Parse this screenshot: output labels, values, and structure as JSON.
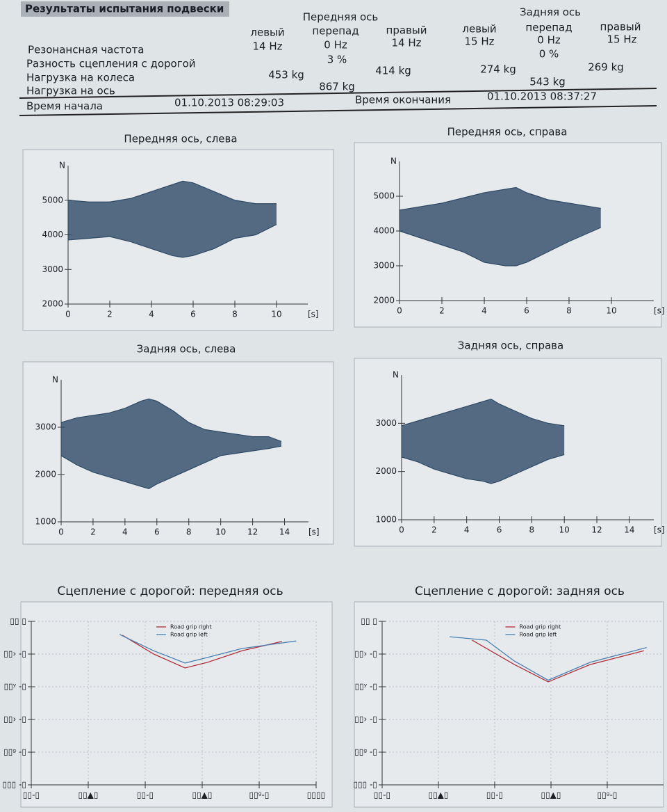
{
  "report": {
    "title": "Результаты испытания подвески",
    "groups": [
      "Передняя ось",
      "Задняя ось"
    ],
    "columns": [
      "левый",
      "перепад",
      "правый",
      "левый",
      "перепад",
      "правый"
    ],
    "rows": [
      {
        "label": "Резонансная частота",
        "cells": [
          "14 Hz",
          "0 Hz",
          "14 Hz",
          "15 Hz",
          "0 Hz",
          "15 Hz"
        ]
      },
      {
        "label": "Разность сцепления с дорогой",
        "cells": [
          "3 %",
          "0 %"
        ]
      },
      {
        "label": "Нагрузка на колеса",
        "cells": [
          "453 kg",
          "414 kg",
          "274 kg",
          "269 kg"
        ]
      },
      {
        "label": "Нагрузка на ось",
        "cells": [
          "867 kg",
          "543 kg"
        ]
      }
    ],
    "start_label": "Время начала",
    "start": "01.10.2013 08:29:03",
    "end_label": "Время окончания",
    "end": "01.10.2013 08:37:27"
  },
  "chart_data": [
    {
      "type": "area",
      "title": "Передняя ось, слева",
      "x_label": "[s]",
      "y_label": "N",
      "color": "#2f4a66",
      "xlim": [
        0,
        11.5
      ],
      "ylim": [
        2000,
        6000
      ],
      "xticks": [
        0,
        2,
        4,
        6,
        8,
        10
      ],
      "yticks": [
        2000,
        3000,
        4000,
        5000
      ],
      "x": [
        0,
        1,
        2,
        3,
        4,
        5,
        5.5,
        6,
        7,
        8,
        9,
        10
      ],
      "series": [
        {
          "values": [
            5000,
            4950,
            4950,
            5050,
            5250,
            5450,
            5550,
            5500,
            5250,
            5000,
            4900,
            4900
          ]
        },
        {
          "values": [
            3850,
            3900,
            3950,
            3800,
            3600,
            3400,
            3350,
            3400,
            3600,
            3900,
            4000,
            4300
          ]
        }
      ]
    },
    {
      "type": "area",
      "title": "Передняя ось, справа",
      "x_label": "[s]",
      "y_label": "N",
      "color": "#2f4a66",
      "xlim": [
        0,
        12
      ],
      "ylim": [
        2000,
        6000
      ],
      "xticks": [
        0,
        2,
        4,
        6,
        8,
        10
      ],
      "yticks": [
        2000,
        3000,
        4000,
        5000
      ],
      "x": [
        0,
        1,
        2,
        3,
        4,
        5,
        5.5,
        6,
        7,
        8,
        9.5
      ],
      "series": [
        {
          "values": [
            4600,
            4700,
            4800,
            4950,
            5100,
            5200,
            5250,
            5100,
            4900,
            4800,
            4650
          ]
        },
        {
          "values": [
            4000,
            3800,
            3600,
            3400,
            3100,
            3000,
            3000,
            3100,
            3400,
            3700,
            4100
          ]
        }
      ]
    },
    {
      "type": "area",
      "title": "Задняя ось, слева",
      "x_label": "[s]",
      "y_label": "N",
      "color": "#2f4a66",
      "xlim": [
        0,
        15.5
      ],
      "ylim": [
        1000,
        4000
      ],
      "xticks": [
        0,
        2,
        4,
        6,
        8,
        10,
        12,
        14
      ],
      "yticks": [
        1000,
        2000,
        3000
      ],
      "x": [
        0,
        1,
        2,
        3,
        4,
        5,
        5.5,
        6,
        7,
        8,
        9,
        10,
        11,
        12,
        13,
        13.8
      ],
      "series": [
        {
          "values": [
            3100,
            3200,
            3250,
            3300,
            3400,
            3550,
            3600,
            3550,
            3350,
            3100,
            2950,
            2900,
            2850,
            2800,
            2800,
            2700
          ]
        },
        {
          "values": [
            2400,
            2200,
            2050,
            1950,
            1850,
            1750,
            1700,
            1800,
            1950,
            2100,
            2250,
            2400,
            2450,
            2500,
            2550,
            2600
          ]
        }
      ]
    },
    {
      "type": "area",
      "title": "Задняя ось, справа",
      "x_label": "[s]",
      "y_label": "N",
      "color": "#2f4a66",
      "xlim": [
        0,
        15.5
      ],
      "ylim": [
        1000,
        4000
      ],
      "xticks": [
        0,
        2,
        4,
        6,
        8,
        10,
        12,
        14
      ],
      "yticks": [
        1000,
        2000,
        3000
      ],
      "x": [
        0,
        1,
        2,
        3,
        4,
        5,
        5.5,
        6,
        7,
        8,
        9,
        10
      ],
      "series": [
        {
          "values": [
            2950,
            3050,
            3150,
            3250,
            3350,
            3450,
            3500,
            3400,
            3250,
            3100,
            3000,
            2950
          ]
        },
        {
          "values": [
            2300,
            2200,
            2050,
            1950,
            1850,
            1800,
            1750,
            1800,
            1950,
            2100,
            2250,
            2350
          ]
        }
      ]
    },
    {
      "type": "line",
      "title": "Сцепление с дорогой: передняя ось",
      "grid": true,
      "legend": "top",
      "xlim": [
        0,
        100
      ],
      "ylim": [
        0,
        100
      ],
      "xticks": [
        {
          "value": 0,
          "label": "▯▯-▯"
        },
        {
          "value": 20,
          "label": "▯▯▲▯"
        },
        {
          "value": 40,
          "label": "▯▯-▯"
        },
        {
          "value": 60,
          "label": "▯▯▲▯"
        },
        {
          "value": 80,
          "label": "▯▯ᵍ-▯"
        },
        {
          "value": 100,
          "label": "▯▯▯▯"
        }
      ],
      "yticks": [
        {
          "value": 100,
          "label": "▯▯ ▯"
        },
        {
          "value": 80,
          "label": "▯▯› -▯"
        },
        {
          "value": 60,
          "label": "▯▯ʸ -▯"
        },
        {
          "value": 40,
          "label": "▯▯› -▯"
        },
        {
          "value": 20,
          "label": "▯▯ᵍ -▯"
        },
        {
          "value": 0,
          "label": "▯▯▯ -▯"
        }
      ],
      "series": [
        {
          "name": "Road grip right",
          "color": "#b0303a",
          "x": [
            32,
            43,
            54,
            62,
            74,
            88
          ],
          "values": [
            91.5,
            80,
            71.5,
            75,
            82,
            87.7
          ]
        },
        {
          "name": "Road grip left",
          "color": "#4a7fb0",
          "x": [
            31,
            43,
            54,
            62,
            74,
            93
          ],
          "values": [
            92,
            82,
            74.5,
            78,
            83.4,
            88
          ]
        }
      ]
    },
    {
      "type": "line",
      "title": "Сцепление с дорогой: задняя ось",
      "grid": true,
      "legend": "top",
      "xlim": [
        0,
        100
      ],
      "ylim": [
        0,
        100
      ],
      "xticks": [
        {
          "value": 0,
          "label": "▯▯-▯"
        },
        {
          "value": 20,
          "label": "▯▯▲▯"
        },
        {
          "value": 40,
          "label": "▯▯-▯"
        },
        {
          "value": 60,
          "label": "▯▯▲▯"
        },
        {
          "value": 80,
          "label": "▯▯ᵍ-▯"
        }
      ],
      "yticks": [
        {
          "value": 100,
          "label": "▯▯ ▯"
        },
        {
          "value": 80,
          "label": "▯▯› -▯"
        },
        {
          "value": 60,
          "label": "▯▯ʸ -▯"
        },
        {
          "value": 40,
          "label": "▯▯› -▯"
        },
        {
          "value": 20,
          "label": "▯▯ᵍ -▯"
        },
        {
          "value": 0,
          "label": "▯▯▯ -▯"
        }
      ],
      "series": [
        {
          "name": "Road grip right",
          "color": "#b0303a",
          "x": [
            32,
            47,
            59,
            74,
            93
          ],
          "values": [
            88.5,
            73.6,
            63,
            73.6,
            82
          ]
        },
        {
          "name": "Road grip left",
          "color": "#4a7fb0",
          "x": [
            24,
            37,
            47,
            59,
            74,
            94
          ],
          "values": [
            90.6,
            88.5,
            75.7,
            64,
            75,
            84
          ]
        }
      ]
    }
  ]
}
